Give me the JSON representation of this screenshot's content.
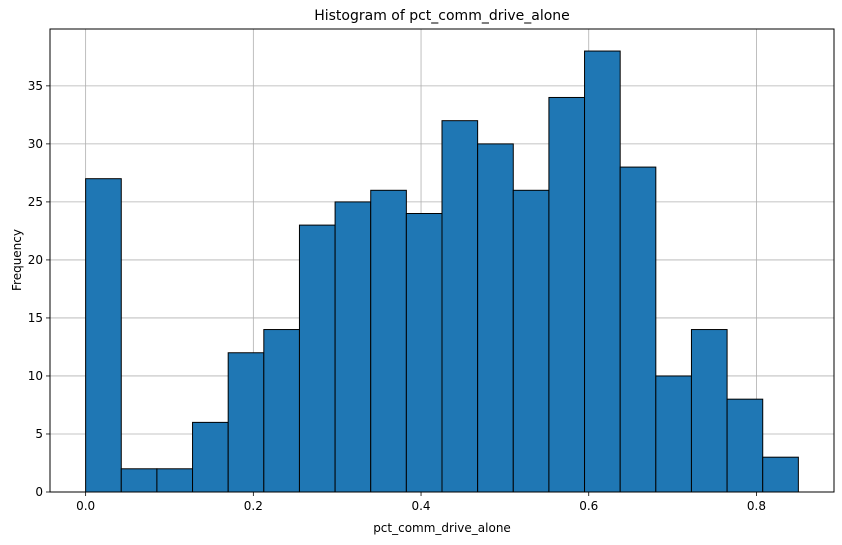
{
  "chart_data": {
    "type": "bar",
    "title": "Histogram of pct_comm_drive_alone",
    "xlabel": "pct_comm_drive_alone",
    "ylabel": "Frequency",
    "bin_range": [
      0.0,
      0.85
    ],
    "bin_count": 20,
    "values": [
      27,
      2,
      2,
      6,
      12,
      14,
      23,
      25,
      26,
      24,
      32,
      30,
      26,
      34,
      38,
      28,
      10,
      14,
      8,
      3
    ],
    "xlim": [
      -0.0425,
      0.8925
    ],
    "ylim": [
      0,
      39.9
    ],
    "xticks": [
      "0.0",
      "0.2",
      "0.4",
      "0.6",
      "0.8"
    ],
    "yticks": [
      "0",
      "5",
      "10",
      "15",
      "20",
      "25",
      "30",
      "35"
    ],
    "grid": true,
    "bar_color": "#1f77b4",
    "edge_color": "#000000"
  }
}
